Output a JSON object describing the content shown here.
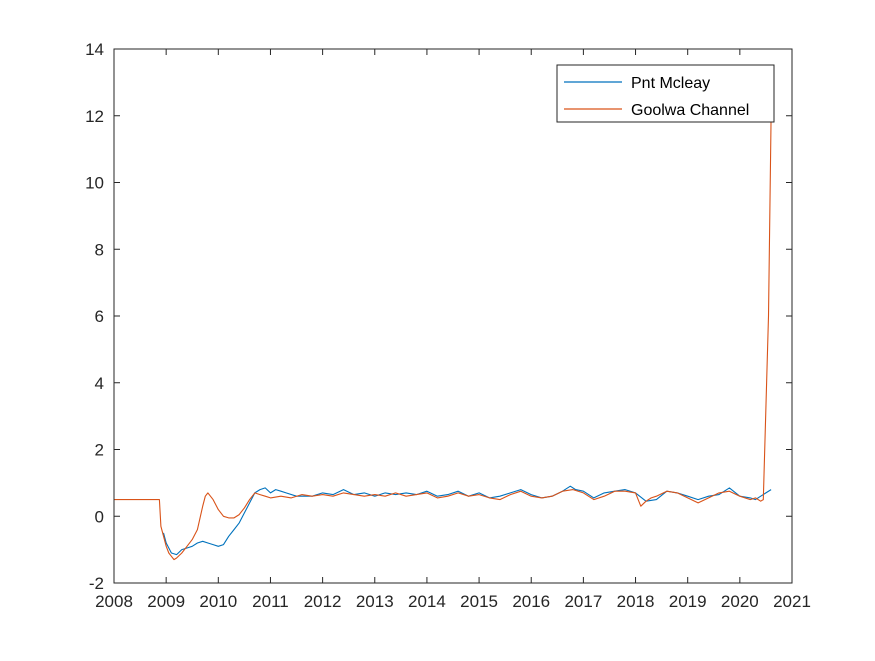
{
  "chart_data": {
    "type": "line",
    "title": "",
    "xlabel": "",
    "ylabel": "",
    "xlim": [
      2008,
      2021
    ],
    "ylim": [
      -2,
      14
    ],
    "xticks": [
      "2008",
      "2009",
      "2010",
      "2011",
      "2012",
      "2013",
      "2014",
      "2015",
      "2016",
      "2017",
      "2018",
      "2019",
      "2020",
      "2021"
    ],
    "yticks": [
      "-2",
      "0",
      "2",
      "4",
      "6",
      "8",
      "10",
      "12",
      "14"
    ],
    "grid": false,
    "legend_position": "top-right",
    "series": [
      {
        "name": "Pnt Mcleay",
        "color": "#0072BD",
        "x": [
          2008.95,
          2009.0,
          2009.1,
          2009.2,
          2009.3,
          2009.4,
          2009.5,
          2009.6,
          2009.7,
          2009.8,
          2009.9,
          2010.0,
          2010.1,
          2010.2,
          2010.3,
          2010.4,
          2010.5,
          2010.6,
          2010.7,
          2010.8,
          2010.9,
          2011.0,
          2011.1,
          2011.2,
          2011.3,
          2011.5,
          2011.8,
          2012.0,
          2012.2,
          2012.4,
          2012.6,
          2012.8,
          2013.0,
          2013.2,
          2013.4,
          2013.6,
          2013.8,
          2014.0,
          2014.2,
          2014.4,
          2014.6,
          2014.8,
          2015.0,
          2015.2,
          2015.4,
          2015.6,
          2015.8,
          2016.0,
          2016.2,
          2016.4,
          2016.6,
          2016.75,
          2016.85,
          2017.0,
          2017.2,
          2017.4,
          2017.6,
          2017.8,
          2018.0,
          2018.2,
          2018.4,
          2018.6,
          2018.8,
          2019.0,
          2019.2,
          2019.4,
          2019.6,
          2019.8,
          2020.0,
          2020.2,
          2020.3,
          2020.4,
          2020.5,
          2020.6
        ],
        "y": [
          -0.5,
          -0.8,
          -1.1,
          -1.15,
          -1.0,
          -0.95,
          -0.9,
          -0.8,
          -0.75,
          -0.8,
          -0.85,
          -0.9,
          -0.85,
          -0.6,
          -0.4,
          -0.2,
          0.1,
          0.4,
          0.7,
          0.8,
          0.85,
          0.7,
          0.8,
          0.75,
          0.7,
          0.6,
          0.6,
          0.7,
          0.65,
          0.8,
          0.65,
          0.7,
          0.6,
          0.7,
          0.65,
          0.7,
          0.65,
          0.75,
          0.6,
          0.65,
          0.75,
          0.6,
          0.7,
          0.55,
          0.6,
          0.7,
          0.8,
          0.65,
          0.55,
          0.6,
          0.75,
          0.9,
          0.8,
          0.75,
          0.55,
          0.7,
          0.75,
          0.8,
          0.7,
          0.45,
          0.5,
          0.75,
          0.7,
          0.6,
          0.5,
          0.6,
          0.65,
          0.85,
          0.6,
          0.55,
          0.5,
          0.6,
          0.7,
          0.8
        ]
      },
      {
        "name": "Goolwa Channel",
        "color": "#D95319",
        "x": [
          2008.0,
          2008.87,
          2008.9,
          2009.0,
          2009.05,
          2009.1,
          2009.15,
          2009.2,
          2009.3,
          2009.4,
          2009.5,
          2009.6,
          2009.7,
          2009.75,
          2009.8,
          2009.9,
          2010.0,
          2010.1,
          2010.2,
          2010.3,
          2010.4,
          2010.5,
          2010.6,
          2010.7,
          2010.8,
          2010.9,
          2011.0,
          2011.2,
          2011.4,
          2011.6,
          2011.8,
          2012.0,
          2012.2,
          2012.4,
          2012.6,
          2012.8,
          2013.0,
          2013.2,
          2013.4,
          2013.6,
          2013.8,
          2014.0,
          2014.2,
          2014.4,
          2014.6,
          2014.8,
          2015.0,
          2015.2,
          2015.4,
          2015.6,
          2015.8,
          2016.0,
          2016.2,
          2016.4,
          2016.6,
          2016.8,
          2017.0,
          2017.2,
          2017.4,
          2017.6,
          2017.8,
          2018.0,
          2018.1,
          2018.2,
          2018.3,
          2018.4,
          2018.6,
          2018.8,
          2019.0,
          2019.2,
          2019.4,
          2019.6,
          2019.8,
          2020.0,
          2020.2,
          2020.3,
          2020.4,
          2020.45,
          2020.55,
          2020.6
        ],
        "y": [
          0.5,
          0.5,
          -0.3,
          -0.9,
          -1.1,
          -1.2,
          -1.3,
          -1.25,
          -1.1,
          -0.9,
          -0.7,
          -0.4,
          0.3,
          0.6,
          0.7,
          0.5,
          0.2,
          0.0,
          -0.05,
          -0.05,
          0.05,
          0.25,
          0.5,
          0.7,
          0.65,
          0.6,
          0.55,
          0.6,
          0.55,
          0.65,
          0.6,
          0.65,
          0.6,
          0.7,
          0.65,
          0.6,
          0.65,
          0.6,
          0.7,
          0.6,
          0.65,
          0.7,
          0.55,
          0.6,
          0.7,
          0.6,
          0.65,
          0.55,
          0.5,
          0.65,
          0.75,
          0.6,
          0.55,
          0.6,
          0.75,
          0.8,
          0.7,
          0.5,
          0.6,
          0.75,
          0.75,
          0.7,
          0.3,
          0.45,
          0.55,
          0.6,
          0.75,
          0.7,
          0.55,
          0.4,
          0.55,
          0.7,
          0.75,
          0.6,
          0.5,
          0.55,
          0.45,
          0.5,
          6.0,
          12.0
        ]
      }
    ]
  }
}
